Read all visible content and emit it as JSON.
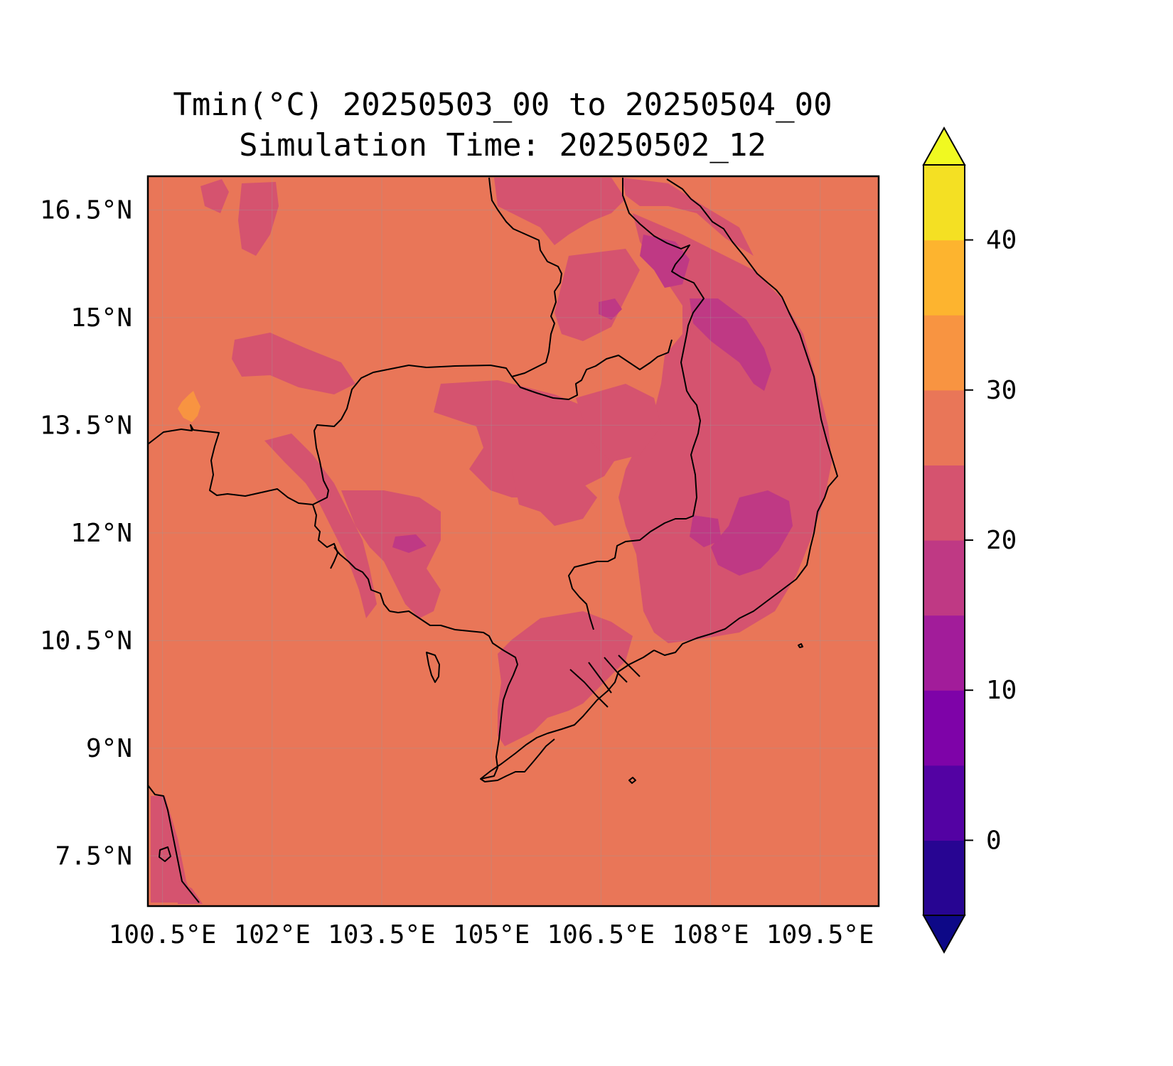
{
  "title": {
    "line1": "Tmin(°C) 20250503_00 to 20250504_00",
    "line2": "Simulation Time: 20250502_12"
  },
  "map": {
    "lon_range": [
      100.3,
      110.3
    ],
    "lat_range": [
      6.8,
      16.97
    ],
    "lon_ticks": [
      {
        "value": 100.5,
        "label": "100.5°E"
      },
      {
        "value": 102,
        "label": "102°E"
      },
      {
        "value": 103.5,
        "label": "103.5°E"
      },
      {
        "value": 105,
        "label": "105°E"
      },
      {
        "value": 106.5,
        "label": "106.5°E"
      },
      {
        "value": 108,
        "label": "108°E"
      },
      {
        "value": 109.5,
        "label": "109.5°E"
      }
    ],
    "lat_ticks": [
      {
        "value": 16.5,
        "label": "16.5°N"
      },
      {
        "value": 15,
        "label": "15°N"
      },
      {
        "value": 13.5,
        "label": "13.5°N"
      },
      {
        "value": 12,
        "label": "12°N"
      },
      {
        "value": 10.5,
        "label": "10.5°N"
      },
      {
        "value": 9,
        "label": "9°N"
      },
      {
        "value": 7.5,
        "label": "7.5°N"
      }
    ],
    "background_level_color": "#e97658"
  },
  "colorbar": {
    "range": [
      -5,
      45
    ],
    "extend": "both",
    "under_color": "#0d0887",
    "over_color": "#f0f921",
    "levels": [
      {
        "from": -5,
        "to": 0,
        "color": "#270592"
      },
      {
        "from": 0,
        "to": 5,
        "color": "#5302a3"
      },
      {
        "from": 5,
        "to": 10,
        "color": "#7e03a8"
      },
      {
        "from": 10,
        "to": 15,
        "color": "#a21c9a"
      },
      {
        "from": 15,
        "to": 20,
        "color": "#bf3984"
      },
      {
        "from": 20,
        "to": 25,
        "color": "#d5536f"
      },
      {
        "from": 25,
        "to": 30,
        "color": "#e97658"
      },
      {
        "from": 30,
        "to": 35,
        "color": "#f89441"
      },
      {
        "from": 35,
        "to": 40,
        "color": "#fdb42f"
      },
      {
        "from": 40,
        "to": 45,
        "color": "#f4e023"
      }
    ],
    "ticks": [
      {
        "value": 0,
        "label": "0"
      },
      {
        "value": 10,
        "label": "10"
      },
      {
        "value": 20,
        "label": "20"
      },
      {
        "value": 30,
        "label": "30"
      },
      {
        "value": 40,
        "label": "40"
      }
    ]
  }
}
